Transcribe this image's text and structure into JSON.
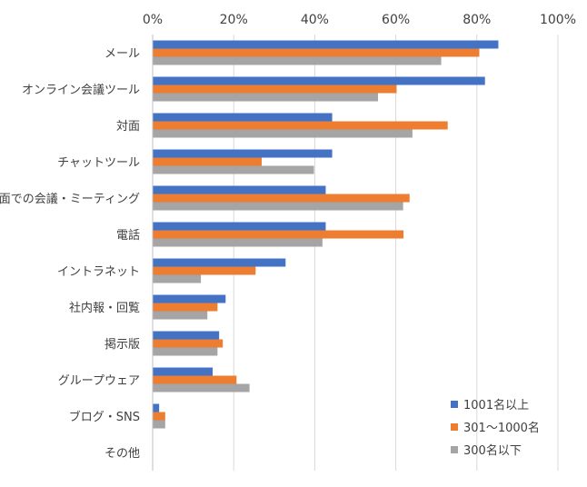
{
  "chart_data": {
    "type": "bar",
    "orientation": "horizontal",
    "title": "",
    "xlabel": "",
    "ylabel": "",
    "xlim": [
      0,
      100
    ],
    "x_ticks": [
      "0%",
      "20%",
      "40%",
      "60%",
      "80%",
      "100%"
    ],
    "x_tick_position": "top",
    "grid": true,
    "legend_position": "bottom-right",
    "categories": [
      "メール",
      "オンライン会議ツール",
      "対面",
      "チャットツール",
      "対面での会議・ミーティング",
      "電話",
      "イントラネット",
      "社内報・回覧",
      "掲示版",
      "グループウェア",
      "ブログ・SNS",
      "その他"
    ],
    "series": [
      {
        "name": "1001名以上",
        "color": "#4472C4",
        "values": [
          85.3,
          82.0,
          44.3,
          44.3,
          42.7,
          42.7,
          32.8,
          18.0,
          16.4,
          14.8,
          1.6,
          0
        ]
      },
      {
        "name": "301～1000名",
        "color": "#ED7D31",
        "values": [
          80.6,
          60.2,
          72.8,
          26.9,
          63.4,
          61.9,
          25.4,
          16.0,
          17.3,
          20.7,
          3.1,
          0
        ]
      },
      {
        "name": "300名以下",
        "color": "#A5A5A5",
        "values": [
          71.2,
          55.6,
          64.1,
          39.8,
          61.8,
          41.9,
          11.9,
          13.5,
          16.0,
          23.9,
          3.1,
          0
        ]
      }
    ]
  }
}
